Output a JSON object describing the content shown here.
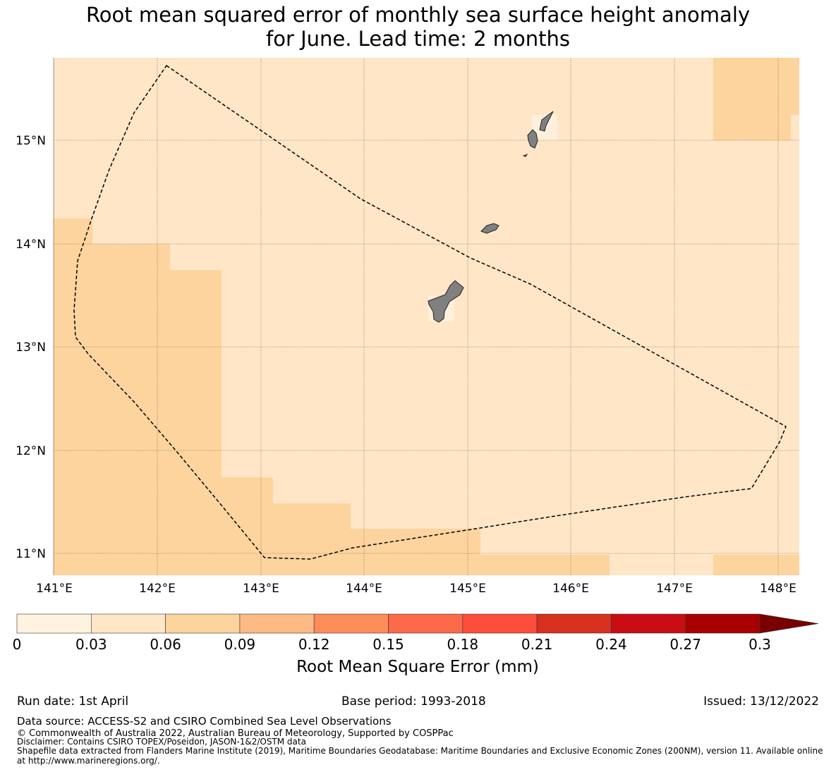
{
  "title": {
    "line1": "Root mean squared error of monthly sea surface height anomaly",
    "line2": "for June. Lead time: 2 months"
  },
  "map": {
    "lon_ticks": [
      "141°E",
      "142°E",
      "143°E",
      "144°E",
      "145°E",
      "146°E",
      "147°E",
      "148°E"
    ],
    "lat_ticks": [
      "15°N",
      "14°N",
      "13°N",
      "12°N",
      "11°N"
    ],
    "colors": {
      "bin_0_03": "#fff0dc",
      "bin_03_06": "#fee6c7",
      "bin_06_09": "#fdd49e",
      "land": "#808080",
      "boundary": "#000000"
    }
  },
  "colorbar": {
    "label": "Root Mean Square Error (mm)",
    "ticks": [
      "0",
      "0.03",
      "0.06",
      "0.09",
      "0.12",
      "0.15",
      "0.18",
      "0.21",
      "0.24",
      "0.27",
      "0.3"
    ],
    "colors": [
      "#fff3e0",
      "#fee6c7",
      "#fdd49e",
      "#fdba84",
      "#fc8d59",
      "#fd6a4a",
      "#fc4e3a",
      "#d7301f",
      "#c90d14",
      "#a80000",
      "#7a0000"
    ]
  },
  "footer": {
    "run_date": "Run date: 1st April",
    "base_period": "Base period: 1993-2018",
    "issued": "Issued: 13/12/2022",
    "data_source": "Data source: ACCESS-S2 and CSIRO Combined Sea Level Observations",
    "copyright": "© Commonwealth of Australia 2022, Australian Bureau of Meteorology, Supported by COSPPac",
    "disclaimer": "Disclaimer: Contains CSIRO TOPEX/Poseidon, JASON-1&2/OSTM data",
    "shapefile1": "Shapefile data extracted from Flanders Marine Institute (2019), Maritime Boundaries Geodatabase: Maritime Boundaries and Exclusive Economic Zones (200NM), version 11. Available online",
    "shapefile2": "at http://www.marineregions.org/."
  }
}
